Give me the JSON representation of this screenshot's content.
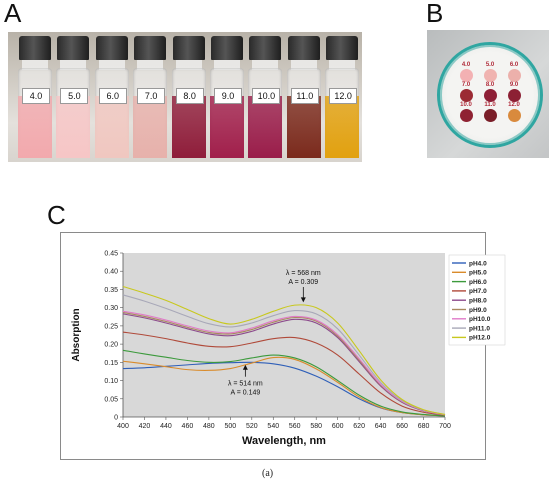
{
  "panels": {
    "a": "A",
    "b": "B",
    "c": "C"
  },
  "caption": "(a)",
  "vials": {
    "labels": [
      "4.0",
      "5.0",
      "6.0",
      "7.0",
      "8.0",
      "9.0",
      "10.0",
      "11.0",
      "12.0"
    ],
    "colors": [
      "#f2a9ad",
      "#f6c6c6",
      "#f0c7c0",
      "#e7b1ab",
      "#8f1d3a",
      "#a11f4b",
      "#9a1d4a",
      "#7b2a1c",
      "#e2a10f"
    ]
  },
  "dish": {
    "labels": [
      "4.0",
      "5.0",
      "6.0",
      "7.0",
      "8.0",
      "9.0",
      "10.0",
      "11.0",
      "12.0"
    ],
    "colors": [
      "#f3b1b3",
      "#f0b3b0",
      "#ecb0ab",
      "#9b2a33",
      "#8e1f36",
      "#8c2034",
      "#8f2232",
      "#7a1e28",
      "#d98a3d"
    ]
  },
  "chart_data": {
    "type": "line",
    "xlabel": "Wavelength, nm",
    "ylabel": "Absorption",
    "xlim": [
      400,
      700
    ],
    "ylim": [
      0,
      0.45
    ],
    "xticks": [
      400,
      420,
      440,
      460,
      480,
      500,
      520,
      540,
      560,
      580,
      600,
      620,
      640,
      660,
      680,
      700
    ],
    "yticks": [
      0,
      0.05,
      0.1,
      0.15,
      0.2,
      0.25,
      0.3,
      0.35,
      0.4,
      0.45
    ],
    "ytick_labels": [
      "0",
      "0.05",
      "0.10",
      "0.15",
      "0.20",
      "0.25",
      "0.30",
      "0.35",
      "0.40",
      "0.45"
    ],
    "x": [
      400,
      420,
      440,
      460,
      480,
      500,
      520,
      540,
      560,
      580,
      600,
      620,
      640,
      660,
      680,
      700
    ],
    "series": [
      {
        "name": "pH4.0",
        "color": "#2f5fb8",
        "values": [
          0.133,
          0.135,
          0.139,
          0.143,
          0.147,
          0.149,
          0.15,
          0.146,
          0.134,
          0.112,
          0.083,
          0.05,
          0.025,
          0.012,
          0.006,
          0.003
        ]
      },
      {
        "name": "pH5.0",
        "color": "#d98b2b",
        "values": [
          0.153,
          0.146,
          0.138,
          0.13,
          0.128,
          0.133,
          0.148,
          0.163,
          0.158,
          0.132,
          0.095,
          0.055,
          0.026,
          0.012,
          0.006,
          0.003
        ]
      },
      {
        "name": "pH6.0",
        "color": "#3c9a3c",
        "values": [
          0.183,
          0.173,
          0.164,
          0.155,
          0.15,
          0.152,
          0.162,
          0.17,
          0.162,
          0.138,
          0.1,
          0.06,
          0.03,
          0.014,
          0.007,
          0.003
        ]
      },
      {
        "name": "pH7.0",
        "color": "#b04a3a",
        "values": [
          0.233,
          0.225,
          0.215,
          0.203,
          0.194,
          0.193,
          0.203,
          0.215,
          0.218,
          0.203,
          0.17,
          0.118,
          0.066,
          0.03,
          0.013,
          0.005
        ]
      },
      {
        "name": "pH8.0",
        "color": "#8c4a8c",
        "values": [
          0.283,
          0.272,
          0.258,
          0.242,
          0.228,
          0.223,
          0.235,
          0.255,
          0.268,
          0.258,
          0.218,
          0.152,
          0.085,
          0.04,
          0.017,
          0.006
        ]
      },
      {
        "name": "pH9.0",
        "color": "#a8895f",
        "values": [
          0.287,
          0.276,
          0.262,
          0.246,
          0.232,
          0.228,
          0.24,
          0.26,
          0.273,
          0.263,
          0.222,
          0.156,
          0.088,
          0.042,
          0.018,
          0.006
        ]
      },
      {
        "name": "pH10.0",
        "color": "#e07bc8",
        "values": [
          0.29,
          0.28,
          0.266,
          0.25,
          0.236,
          0.231,
          0.244,
          0.264,
          0.276,
          0.266,
          0.226,
          0.16,
          0.09,
          0.043,
          0.018,
          0.006
        ]
      },
      {
        "name": "pH11.0",
        "color": "#a8a8b8",
        "values": [
          0.335,
          0.318,
          0.298,
          0.276,
          0.256,
          0.247,
          0.258,
          0.278,
          0.292,
          0.283,
          0.242,
          0.17,
          0.095,
          0.045,
          0.019,
          0.007
        ]
      },
      {
        "name": "pH12.0",
        "color": "#c8c81e",
        "values": [
          0.358,
          0.34,
          0.32,
          0.295,
          0.27,
          0.255,
          0.268,
          0.29,
          0.307,
          0.3,
          0.258,
          0.182,
          0.102,
          0.048,
          0.02,
          0.007
        ]
      }
    ],
    "annotations": [
      {
        "line1": "λ = 568 nm",
        "line2": "A = 0.309",
        "x": 568,
        "y": 0.309
      },
      {
        "line1": "λ = 514 nm",
        "line2": "A = 0.149",
        "x": 514,
        "y": 0.149
      }
    ],
    "grid": false,
    "legend": "top-right",
    "plot_background": "#d8d8d8"
  }
}
